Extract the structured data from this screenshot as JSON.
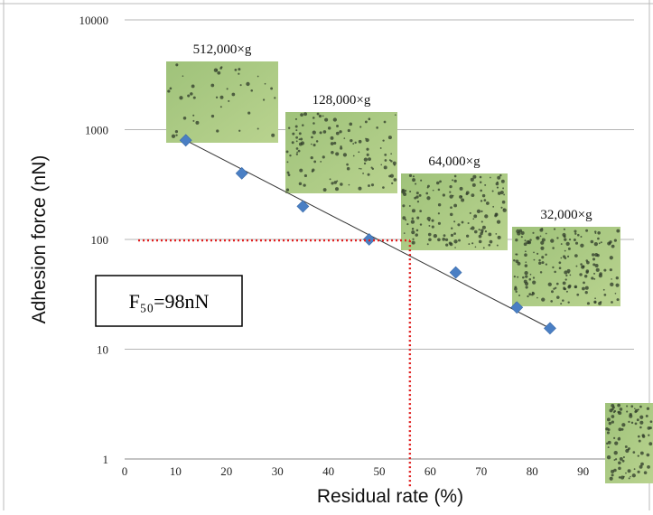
{
  "chart_data": {
    "type": "scatter",
    "title": "",
    "xlabel": "Residual rate (%)",
    "ylabel": "Adhesion force (nN)",
    "x_ticks": [
      "0",
      "10",
      "20",
      "30",
      "40",
      "50",
      "60",
      "70",
      "80",
      "90"
    ],
    "y_ticks": [
      "1",
      "10",
      "100",
      "1000",
      "10000"
    ],
    "xlim": [
      0,
      100
    ],
    "ylim": [
      1,
      10000
    ],
    "y_scale": "log",
    "grid": true,
    "legend": "none",
    "series": [
      {
        "color": "#4a7fc4",
        "marker": "diamond",
        "points": [
          {
            "x": 12,
            "y": 800
          },
          {
            "x": 23,
            "y": 400
          },
          {
            "x": 35,
            "y": 200
          },
          {
            "x": 48,
            "y": 100
          },
          {
            "x": 65,
            "y": 50
          },
          {
            "x": 77,
            "y": 24
          },
          {
            "x": 83.5,
            "y": 15.5
          }
        ]
      }
    ],
    "trendline": {
      "x": [
        12,
        83.5
      ],
      "y": [
        800,
        15.5
      ],
      "color": "#333333"
    },
    "annotation_text": "F₅₀=98nN",
    "annotation_value": {
      "x": 56,
      "y": 98,
      "color": "#e02020",
      "style": "dotted"
    },
    "inset_labels": [
      "512,000×g",
      "128,000×g",
      "64,000×g",
      "32,000×g"
    ]
  }
}
